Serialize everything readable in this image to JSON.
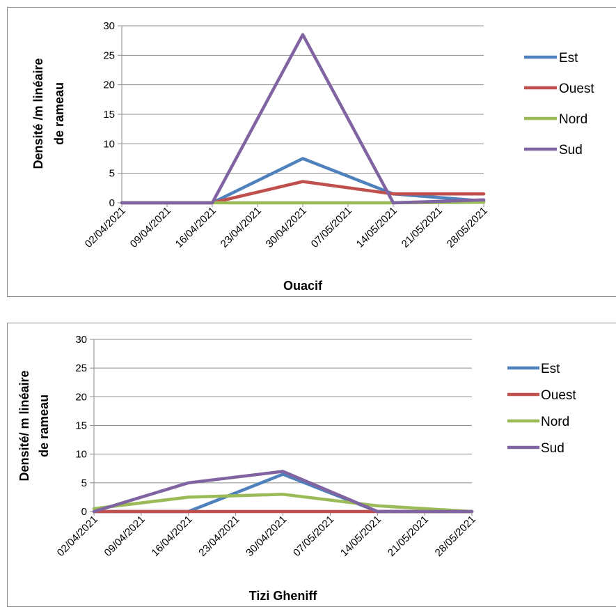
{
  "chart_data": [
    {
      "type": "line",
      "title": "",
      "xlabel": "Ouacif",
      "ylabel_lines": [
        "Densité /m linéaire",
        "de rameau"
      ],
      "categories": [
        "02/04/2021",
        "09/04/2021",
        "16/04/2021",
        "23/04/2021",
        "30/04/2021",
        "07/05/2021",
        "14/05/2021",
        "21/05/2021",
        "28/05/2021"
      ],
      "ylim": [
        0,
        30
      ],
      "yticks": [
        0,
        5,
        10,
        15,
        20,
        25,
        30
      ],
      "grid": "horizontal",
      "legend_position": "right",
      "series": [
        {
          "name": "Est",
          "color": "#4f81bd",
          "points": [
            [
              0,
              0
            ],
            [
              2,
              0
            ],
            [
              4,
              7.5
            ],
            [
              6,
              1.5
            ],
            [
              8,
              0.3
            ]
          ]
        },
        {
          "name": "Ouest",
          "color": "#c0504d",
          "points": [
            [
              0,
              0
            ],
            [
              2,
              0
            ],
            [
              4,
              3.6
            ],
            [
              6,
              1.5
            ],
            [
              8,
              1.5
            ]
          ]
        },
        {
          "name": "Nord",
          "color": "#9bbb59",
          "points": [
            [
              0,
              0
            ],
            [
              2,
              0
            ],
            [
              4,
              0
            ],
            [
              6,
              0
            ],
            [
              8,
              0.1
            ]
          ]
        },
        {
          "name": "Sud",
          "color": "#8064a2",
          "points": [
            [
              0,
              0
            ],
            [
              2,
              0
            ],
            [
              4,
              28.5
            ],
            [
              6,
              0
            ],
            [
              8,
              0.5
            ]
          ]
        }
      ]
    },
    {
      "type": "line",
      "title": "",
      "xlabel": "Tizi Gheniff",
      "ylabel_lines": [
        "Densité/ m linéaire",
        "de rameau"
      ],
      "categories": [
        "02/04/2021",
        "09/04/2021",
        "16/04/2021",
        "23/04/2021",
        "30/04/2021",
        "07/05/2021",
        "14/05/2021",
        "21/05/2021",
        "28/05/2021"
      ],
      "ylim": [
        0,
        30
      ],
      "yticks": [
        0,
        5,
        10,
        15,
        20,
        25,
        30
      ],
      "grid": "horizontal",
      "legend_position": "right",
      "series": [
        {
          "name": "Est",
          "color": "#4f81bd",
          "points": [
            [
              0,
              0
            ],
            [
              2,
              0
            ],
            [
              4,
              6.5
            ],
            [
              6,
              0
            ],
            [
              8,
              0
            ]
          ]
        },
        {
          "name": "Ouest",
          "color": "#c0504d",
          "points": [
            [
              0,
              0
            ],
            [
              2,
              0
            ],
            [
              4,
              0
            ],
            [
              6,
              0
            ],
            [
              8,
              0
            ]
          ]
        },
        {
          "name": "Nord",
          "color": "#9bbb59",
          "points": [
            [
              0,
              0.5
            ],
            [
              2,
              2.5
            ],
            [
              4,
              3
            ],
            [
              6,
              1
            ],
            [
              8,
              0
            ]
          ]
        },
        {
          "name": "Sud",
          "color": "#8064a2",
          "points": [
            [
              0,
              0
            ],
            [
              2,
              5
            ],
            [
              4,
              7
            ],
            [
              6,
              0
            ],
            [
              8,
              0
            ]
          ]
        }
      ]
    }
  ]
}
